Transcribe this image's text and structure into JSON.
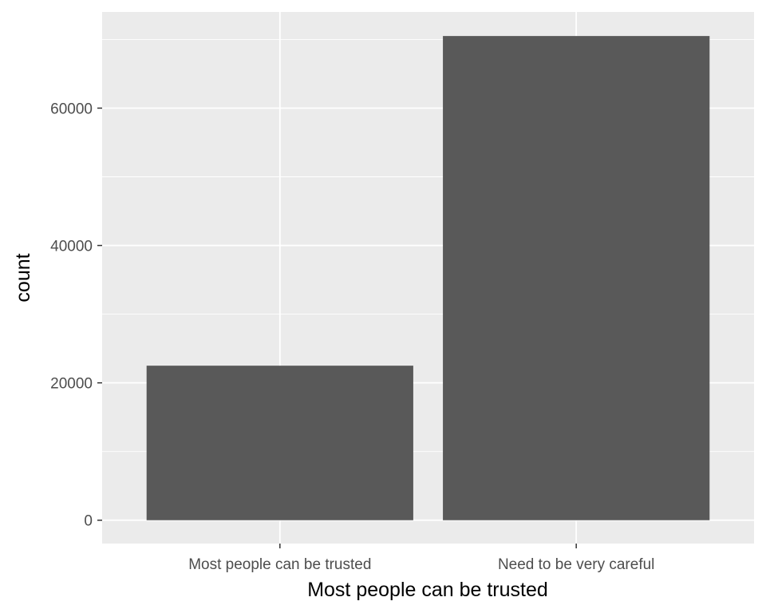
{
  "chart_data": {
    "type": "bar",
    "title": "",
    "xlabel": "Most people can be trusted",
    "ylabel": "count",
    "categories": [
      "Most people can be trusted",
      "Need to be very careful"
    ],
    "values": [
      22500,
      70500
    ],
    "ylim": [
      -3400,
      74000
    ],
    "yticks": [
      0,
      20000,
      40000,
      60000
    ],
    "ytick_labels": [
      "0",
      "20000",
      "40000",
      "60000"
    ],
    "grid": true,
    "legend": "none",
    "colors": {
      "panel_background": "#ebebeb",
      "grid_line": "#ffffff",
      "bar_fill": "#595959",
      "tick_mark": "#333333",
      "tick_text": "#4d4d4d",
      "axis_title": "#000000"
    }
  }
}
